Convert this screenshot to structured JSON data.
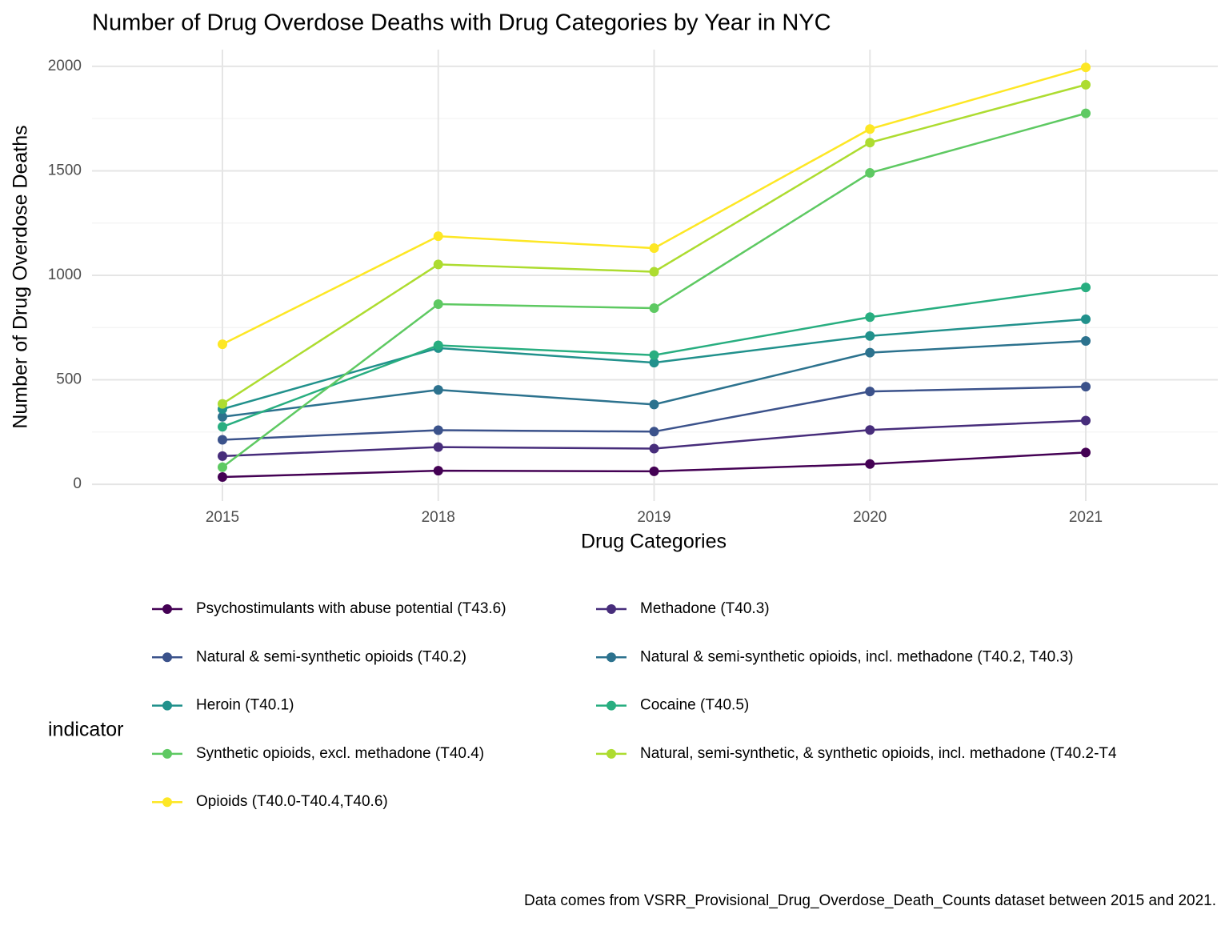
{
  "chart_data": {
    "type": "line",
    "title": "Number of Drug Overdose Deaths with Drug Categories by Year in NYC",
    "x_label": "Drug Categories",
    "y_label": "Number of Drug Overdose Deaths",
    "legend_title": "indicator",
    "caption": "Data comes from VSRR_Provisional_Drug_Overdose_Death_Counts dataset between 2015 and 2021.",
    "categories": [
      "2015",
      "2018",
      "2019",
      "2020",
      "2021"
    ],
    "ylim": [
      -80,
      2080
    ],
    "yticks": [
      0,
      500,
      1000,
      1500,
      2000
    ],
    "grid": true,
    "legend_position": "bottom",
    "series": [
      {
        "name": "Psychostimulants with abuse potential (T43.6)",
        "color": "#440154",
        "values": [
          35,
          65,
          62,
          97,
          152
        ]
      },
      {
        "name": "Methadone (T40.3)",
        "color": "#472d7b",
        "values": [
          135,
          178,
          171,
          260,
          305
        ]
      },
      {
        "name": "Natural & semi-synthetic opioids (T40.2)",
        "color": "#3b528b",
        "values": [
          213,
          259,
          252,
          444,
          467
        ]
      },
      {
        "name": "Natural & semi-synthetic opioids, incl. methadone (T40.2, T40.3)",
        "color": "#2c728e",
        "values": [
          323,
          452,
          382,
          630,
          686
        ]
      },
      {
        "name": "Heroin (T40.1)",
        "color": "#21918c",
        "values": [
          360,
          652,
          582,
          710,
          790
        ]
      },
      {
        "name": "Cocaine (T40.5)",
        "color": "#28ae80",
        "values": [
          275,
          665,
          618,
          800,
          942
        ]
      },
      {
        "name": "Synthetic opioids, excl. methadone (T40.4)",
        "color": "#5ec962",
        "values": [
          82,
          862,
          843,
          1490,
          1775
        ]
      },
      {
        "name": "Natural, semi-synthetic, & synthetic opioids, incl. methadone (T40.2-T4",
        "color": "#addc30",
        "values": [
          385,
          1052,
          1017,
          1635,
          1912
        ]
      },
      {
        "name": "Opioids (T40.0-T40.4,T40.6)",
        "color": "#fde725",
        "values": [
          670,
          1187,
          1130,
          1700,
          1995
        ]
      }
    ]
  }
}
